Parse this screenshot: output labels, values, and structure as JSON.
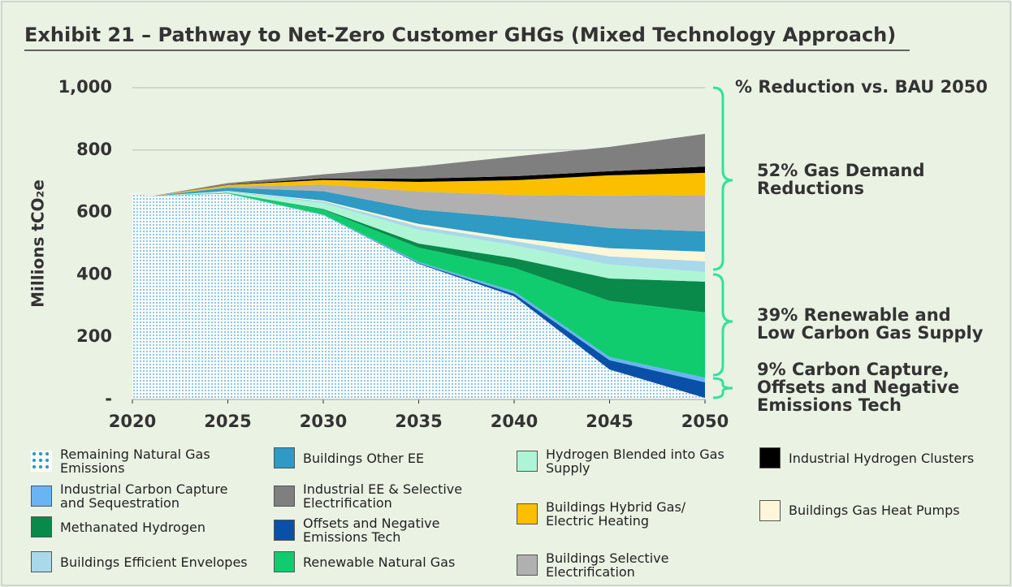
{
  "chart_data": {
    "type": "stacked_area",
    "title": "Exhibit 21 – Pathway to Net-Zero Customer GHGs (Mixed Technology Approach)",
    "y_label": "Millions tCO₂e",
    "x": [
      2020,
      2021,
      2025,
      2030,
      2035,
      2040,
      2045,
      2050
    ],
    "xlim": [
      2020,
      2050
    ],
    "xticks": [
      2020,
      2025,
      2030,
      2035,
      2040,
      2045,
      2050
    ],
    "ylim": [
      0,
      1000
    ],
    "yticks": [
      {
        "value": 0,
        "label": "-"
      },
      200,
      400,
      600,
      800,
      {
        "value": 1000,
        "label": "1,000"
      }
    ],
    "series": [
      {
        "name": "Remaining Natural Gas Emissions",
        "color": "#8ec4ea",
        "values": [
          660,
          652,
          660,
          591,
          435,
          331,
          96,
          5
        ]
      },
      {
        "name": "Offsets and Negative Emissions Tech",
        "color": "#0a4fa8",
        "values": [
          0,
          0,
          0,
          0,
          2,
          8,
          30,
          50
        ]
      },
      {
        "name": "Industrial Carbon Capture and Sequestration",
        "color": "#6ab4f5",
        "values": [
          0,
          0,
          1,
          2,
          4,
          8,
          10,
          15
        ]
      },
      {
        "name": "Renewable Natural Gas",
        "color": "#10cc6e",
        "values": [
          0,
          0,
          2,
          16,
          46,
          75,
          180,
          209
        ]
      },
      {
        "name": "Methanated Hydrogen",
        "color": "#0a8a4a",
        "values": [
          0,
          0,
          0,
          2,
          13,
          31,
          72,
          99
        ]
      },
      {
        "name": "Hydrogen Blended into Gas Supply",
        "color": "#aef5d6",
        "values": [
          0,
          0,
          3,
          19,
          44,
          42,
          45,
          31
        ]
      },
      {
        "name": "Buildings Efficient Envelopes",
        "color": "#a8d8ea",
        "values": [
          0,
          0,
          2,
          5,
          11,
          13,
          26,
          34
        ]
      },
      {
        "name": "Buildings Gas Heat Pumps",
        "color": "#fdf6d8",
        "values": [
          0,
          0,
          1,
          3,
          8,
          10,
          26,
          31
        ]
      },
      {
        "name": "Buildings Other EE",
        "color": "#2f9bc4",
        "values": [
          0,
          0,
          10,
          30,
          46,
          65,
          65,
          65
        ]
      },
      {
        "name": "Buildings Selective Electrification",
        "color": "#b0b0b0",
        "values": [
          0,
          0,
          4,
          21,
          58,
          73,
          104,
          117
        ]
      },
      {
        "name": "Buildings Hybrid Gas/ Electric Heating",
        "color": "#fbbf00",
        "values": [
          0,
          0,
          5,
          15,
          31,
          47,
          65,
          71
        ]
      },
      {
        "name": "Industrial Hydrogen Clusters",
        "color": "#000000",
        "values": [
          0,
          0,
          1,
          5,
          10,
          13,
          13,
          20
        ]
      },
      {
        "name": "Industrial EE & Selective Electrification",
        "color": "#7f7f7f",
        "values": [
          0,
          0,
          5,
          13,
          39,
          63,
          78,
          105
        ]
      }
    ],
    "annotations": [
      {
        "lines": [
          "% Reduction vs. BAU 2050"
        ]
      },
      {
        "lines": [
          "52% Gas Demand",
          "Reductions"
        ]
      },
      {
        "lines": [
          "39% Renewable and",
          "Low Carbon Gas Supply"
        ]
      },
      {
        "lines": [
          "9% Carbon Capture,",
          "Offsets and Negative",
          "Emissions Tech"
        ]
      }
    ]
  }
}
